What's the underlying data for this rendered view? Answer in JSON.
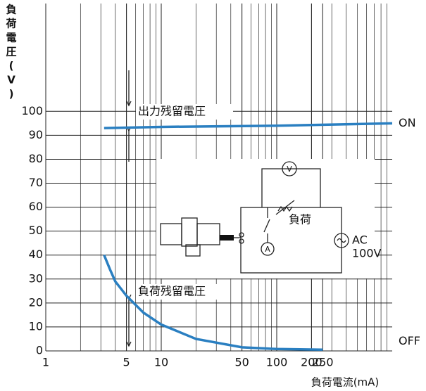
{
  "chart_data": {
    "type": "line",
    "y_label": "負荷電圧(V)",
    "x_label": "負荷電流(mA)",
    "xlog": true,
    "xlim": [
      1,
      1000
    ],
    "ylim": [
      0,
      145
    ],
    "xticks": [
      1,
      5,
      10,
      50,
      100,
      200,
      250
    ],
    "yticks": [
      0,
      10,
      20,
      30,
      40,
      50,
      60,
      70,
      80,
      90,
      100
    ],
    "grid": true,
    "minor_grid": true,
    "series": [
      {
        "name": "ON",
        "color": "#2a7fc1",
        "x": [
          3.2,
          10,
          100,
          1000
        ],
        "values": [
          93,
          93.5,
          94,
          95
        ]
      },
      {
        "name": "OFF",
        "color": "#2a7fc1",
        "x": [
          3.2,
          3.6,
          4,
          5,
          7,
          10,
          20,
          50,
          100,
          250
        ],
        "values": [
          40,
          34,
          29,
          23,
          16,
          11,
          5,
          1.5,
          0.8,
          0.5
        ]
      }
    ],
    "annotations": [
      "出力残留電圧",
      "負荷残留電圧"
    ],
    "circuit": {
      "load": "負荷",
      "source": "AC",
      "voltage": "100V",
      "voltmeter": "V",
      "ammeter": "A"
    }
  }
}
